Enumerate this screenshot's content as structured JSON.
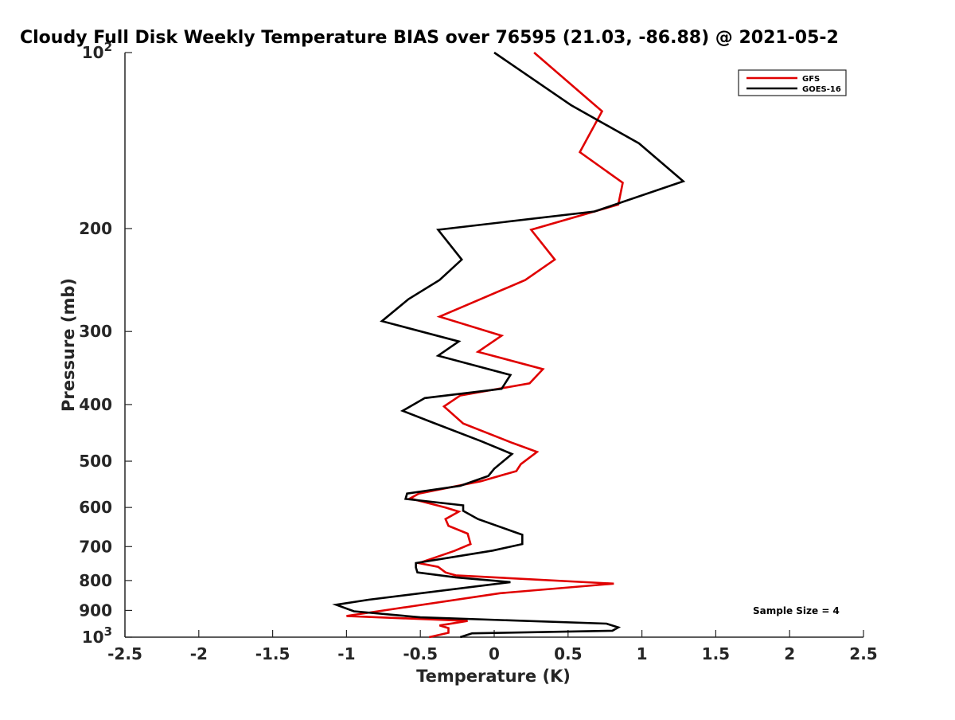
{
  "chart_data": {
    "type": "line",
    "title": "Cloudy Full Disk Weekly Temperature BIAS over 76595 (21.03, -86.88) @ 2021-05-2",
    "xlabel": "Temperature (K)",
    "ylabel": "Pressure (mb)",
    "xlim": [
      -2.5,
      2.5
    ],
    "ylim": [
      100,
      1000
    ],
    "y_scale": "log",
    "y_reversed": true,
    "grid": false,
    "legend_position": "top-right",
    "annotation": "Sample Size = 4",
    "x_ticks": [
      {
        "value": -2.5,
        "label": "-2.5"
      },
      {
        "value": -2,
        "label": "-2"
      },
      {
        "value": -1.5,
        "label": "-1.5"
      },
      {
        "value": -1,
        "label": "-1"
      },
      {
        "value": -0.5,
        "label": "-0.5"
      },
      {
        "value": 0,
        "label": "0"
      },
      {
        "value": 0.5,
        "label": "0.5"
      },
      {
        "value": 1,
        "label": "1"
      },
      {
        "value": 1.5,
        "label": "1.5"
      },
      {
        "value": 2,
        "label": "2"
      },
      {
        "value": 2.5,
        "label": "2.5"
      }
    ],
    "y_ticks": [
      {
        "value": 100,
        "base": "10",
        "exp": "2"
      },
      {
        "value": 200,
        "base": "200",
        "exp": ""
      },
      {
        "value": 300,
        "base": "300",
        "exp": ""
      },
      {
        "value": 400,
        "base": "400",
        "exp": ""
      },
      {
        "value": 500,
        "base": "500",
        "exp": ""
      },
      {
        "value": 600,
        "base": "600",
        "exp": ""
      },
      {
        "value": 700,
        "base": "700",
        "exp": ""
      },
      {
        "value": 800,
        "base": "800",
        "exp": ""
      },
      {
        "value": 900,
        "base": "900",
        "exp": ""
      },
      {
        "value": 1000,
        "base": "10",
        "exp": "3"
      }
    ],
    "series": [
      {
        "name": "GFS",
        "color": "#e00000",
        "points": [
          [
            0.27,
            100
          ],
          [
            0.73,
            126
          ],
          [
            0.58,
            148
          ],
          [
            0.87,
            167
          ],
          [
            0.84,
            182
          ],
          [
            0.25,
            201
          ],
          [
            0.41,
            226
          ],
          [
            0.21,
            245
          ],
          [
            -0.37,
            283
          ],
          [
            0.05,
            305
          ],
          [
            -0.11,
            325
          ],
          [
            0.33,
            348
          ],
          [
            0.24,
            368
          ],
          [
            -0.23,
            386
          ],
          [
            -0.34,
            403
          ],
          [
            -0.21,
            431
          ],
          [
            0.12,
            465
          ],
          [
            0.29,
            482
          ],
          [
            0.18,
            506
          ],
          [
            0.15,
            520
          ],
          [
            -0.09,
            541
          ],
          [
            -0.51,
            568
          ],
          [
            -0.57,
            579
          ],
          [
            -0.33,
            600
          ],
          [
            -0.24,
            610
          ],
          [
            -0.33,
            628
          ],
          [
            -0.31,
            645
          ],
          [
            -0.18,
            665
          ],
          [
            -0.16,
            693
          ],
          [
            -0.27,
            712
          ],
          [
            -0.51,
            747
          ],
          [
            -0.38,
            758
          ],
          [
            -0.33,
            775
          ],
          [
            -0.26,
            784
          ],
          [
            0.81,
            810
          ],
          [
            0.04,
            841
          ],
          [
            -1.0,
            920
          ],
          [
            -0.18,
            938
          ],
          [
            -0.37,
            955
          ],
          [
            -0.31,
            965
          ],
          [
            -0.31,
            983
          ],
          [
            -0.44,
            1000
          ]
        ]
      },
      {
        "name": "GOES-16",
        "color": "#000000",
        "points": [
          [
            0,
            100
          ],
          [
            0.52,
            123
          ],
          [
            0.98,
            143
          ],
          [
            1.28,
            166
          ],
          [
            0.68,
            187
          ],
          [
            -0.38,
            201
          ],
          [
            -0.22,
            226
          ],
          [
            -0.37,
            245
          ],
          [
            -0.58,
            264
          ],
          [
            -0.76,
            288
          ],
          [
            -0.24,
            312
          ],
          [
            -0.38,
            330
          ],
          [
            0.11,
            356
          ],
          [
            0.05,
            376
          ],
          [
            -0.47,
            390
          ],
          [
            -0.62,
            410
          ],
          [
            -0.41,
            430
          ],
          [
            -0.09,
            462
          ],
          [
            0.12,
            486
          ],
          [
            0.0,
            515
          ],
          [
            -0.04,
            530
          ],
          [
            -0.23,
            551
          ],
          [
            -0.59,
            568
          ],
          [
            -0.6,
            580
          ],
          [
            -0.21,
            595
          ],
          [
            -0.21,
            608
          ],
          [
            -0.11,
            628
          ],
          [
            0.13,
            660
          ],
          [
            0.19,
            668
          ],
          [
            0.19,
            693
          ],
          [
            -0.01,
            711
          ],
          [
            -0.53,
            747
          ],
          [
            -0.53,
            760
          ],
          [
            -0.52,
            775
          ],
          [
            -0.26,
            790
          ],
          [
            0.11,
            805
          ],
          [
            -0.85,
            863
          ],
          [
            -1.07,
            880
          ],
          [
            -0.95,
            903
          ],
          [
            -0.5,
            925
          ],
          [
            0.76,
            948
          ],
          [
            0.84,
            962
          ],
          [
            0.8,
            975
          ],
          [
            -0.15,
            985
          ],
          [
            -0.23,
            1000
          ]
        ]
      }
    ]
  }
}
